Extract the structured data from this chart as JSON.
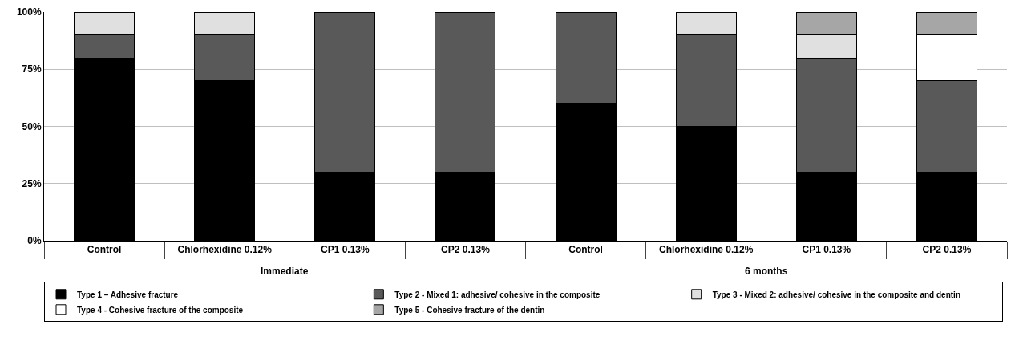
{
  "chart_data": {
    "type": "bar",
    "stacked": true,
    "categories": [
      "Control",
      "Chlorhexidine 0.12%",
      "CP1 0.13%",
      "CP2 0.13%",
      "Control",
      "Chlorhexidine 0.12%",
      "CP1 0.13%",
      "CP2 0.13%"
    ],
    "series": [
      {
        "name": "Type 1 – Adhesive fracture",
        "color": "#000000",
        "values": [
          80,
          70,
          30,
          30,
          60,
          50,
          30,
          30
        ]
      },
      {
        "name": "Type 2 - Mixed 1: adhesive/ cohesive in the composite",
        "color": "#595959",
        "values": [
          10,
          20,
          70,
          70,
          40,
          40,
          50,
          40
        ]
      },
      {
        "name": "Type 3 - Mixed 2: adhesive/ cohesive in the composite and dentin",
        "color": "#e0e0e0",
        "values": [
          10,
          10,
          0,
          0,
          0,
          10,
          10,
          0
        ]
      },
      {
        "name": "Type 4 - Cohesive fracture of the composite",
        "color": "#ffffff",
        "values": [
          0,
          0,
          0,
          0,
          0,
          0,
          0,
          20
        ]
      },
      {
        "name": "Type 5 - Cohesive fracture of the dentin",
        "color": "#a6a6a6",
        "values": [
          0,
          0,
          0,
          0,
          0,
          0,
          10,
          10
        ]
      }
    ],
    "ylim": [
      0,
      100
    ],
    "yticks": [
      {
        "value": 0,
        "label": "0%"
      },
      {
        "value": 25,
        "label": "25%"
      },
      {
        "value": 50,
        "label": "50%"
      },
      {
        "value": 75,
        "label": "75%"
      },
      {
        "value": 100,
        "label": "100%"
      }
    ],
    "grid": "y",
    "legend": "bottom",
    "annotations": [
      "Immediate",
      "6 months"
    ]
  }
}
